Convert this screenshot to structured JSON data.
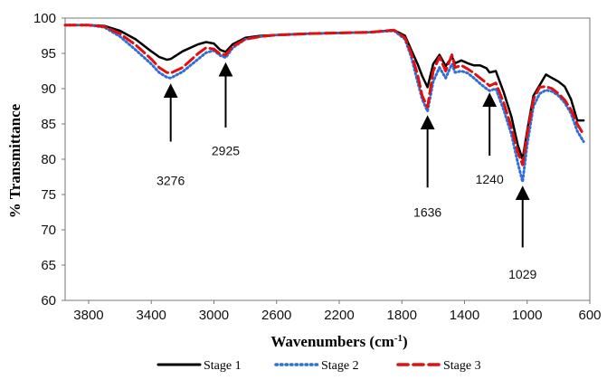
{
  "chart_data": {
    "type": "line",
    "title": "",
    "xlabel": "Wavenumbers (cm",
    "xlabel_sup": "-1",
    "xlabel_close": ")",
    "ylabel": "% Transmittance",
    "xlim": [
      3950,
      600
    ],
    "x_reversed": true,
    "ylim": [
      60,
      100
    ],
    "grid": false,
    "legend_position": "bottom",
    "xticks": [
      3800,
      3400,
      3000,
      2600,
      2200,
      1800,
      1400,
      1000,
      600
    ],
    "yticks": [
      60,
      65,
      70,
      75,
      80,
      85,
      90,
      95,
      100
    ],
    "series": [
      {
        "name": "Stage 1",
        "color": "#000000",
        "style": "solid",
        "x": [
          3950,
          3800,
          3700,
          3600,
          3500,
          3400,
          3350,
          3300,
          3276,
          3200,
          3100,
          3050,
          3000,
          2960,
          2925,
          2880,
          2800,
          2700,
          2600,
          2400,
          2200,
          2000,
          1850,
          1780,
          1740,
          1700,
          1670,
          1636,
          1600,
          1560,
          1520,
          1480,
          1460,
          1420,
          1380,
          1340,
          1300,
          1260,
          1240,
          1200,
          1150,
          1100,
          1060,
          1029,
          1000,
          960,
          920,
          880,
          840,
          800,
          760,
          720,
          680,
          640
        ],
        "y": [
          99,
          99,
          98.9,
          98.2,
          97,
          95.3,
          94.5,
          94.1,
          94.2,
          95.3,
          96.3,
          96.6,
          96.4,
          95.5,
          95.2,
          96.3,
          97.2,
          97.5,
          97.6,
          97.8,
          97.9,
          98,
          98.3,
          97.5,
          95.5,
          93.5,
          91.8,
          90.2,
          93.5,
          94.8,
          93.2,
          94.5,
          93.6,
          94,
          93.6,
          93.3,
          93.3,
          92.9,
          92.3,
          92.5,
          89.5,
          86,
          82,
          80,
          84,
          89,
          90.5,
          92,
          91.5,
          91,
          90.3,
          88.5,
          85.5,
          85.5
        ]
      },
      {
        "name": "Stage 2",
        "color": "#2f6fd6",
        "style": "dotted",
        "x": [
          3950,
          3800,
          3700,
          3600,
          3500,
          3400,
          3350,
          3300,
          3276,
          3200,
          3100,
          3050,
          3000,
          2960,
          2925,
          2880,
          2800,
          2700,
          2600,
          2400,
          2200,
          2000,
          1850,
          1780,
          1740,
          1700,
          1670,
          1636,
          1600,
          1560,
          1520,
          1480,
          1460,
          1420,
          1380,
          1340,
          1300,
          1260,
          1240,
          1200,
          1150,
          1100,
          1060,
          1029,
          1000,
          960,
          920,
          880,
          840,
          800,
          760,
          720,
          680,
          640
        ],
        "y": [
          99,
          99,
          98.7,
          97.4,
          95.5,
          93.5,
          92.3,
          91.6,
          91.5,
          92.4,
          94.2,
          95.1,
          95.4,
          94.7,
          94.4,
          95.8,
          97,
          97.4,
          97.6,
          97.8,
          97.9,
          98,
          98.2,
          97,
          94.5,
          91,
          88.5,
          86.8,
          91,
          93,
          91.5,
          93.5,
          92.3,
          92.5,
          92.2,
          91.5,
          90.7,
          90,
          89.7,
          90,
          87,
          83.5,
          79.5,
          76.8,
          82,
          87.5,
          89.3,
          89.8,
          89.6,
          89,
          88,
          86.5,
          84,
          82.5
        ]
      },
      {
        "name": "Stage 3",
        "color": "#e01010",
        "style": "dashed",
        "x": [
          3950,
          3800,
          3700,
          3600,
          3500,
          3400,
          3350,
          3300,
          3276,
          3200,
          3100,
          3050,
          3000,
          2960,
          2925,
          2880,
          2800,
          2700,
          2600,
          2400,
          2200,
          2000,
          1850,
          1780,
          1740,
          1700,
          1670,
          1636,
          1600,
          1560,
          1520,
          1480,
          1460,
          1420,
          1380,
          1340,
          1300,
          1260,
          1240,
          1200,
          1150,
          1100,
          1060,
          1029,
          1000,
          960,
          920,
          880,
          840,
          800,
          760,
          720,
          680,
          640
        ],
        "y": [
          99,
          99,
          98.8,
          97.8,
          96.2,
          94.2,
          93,
          92.3,
          92.2,
          93,
          95,
          95.8,
          95.6,
          94.9,
          94.8,
          96,
          97,
          97.4,
          97.6,
          97.8,
          97.9,
          98,
          98.3,
          97.2,
          95,
          92,
          89,
          87.4,
          92.5,
          94.5,
          92.5,
          94.8,
          93,
          93.3,
          92.8,
          92.2,
          91.5,
          90.8,
          90.4,
          90.8,
          88,
          84.5,
          81,
          79.2,
          83.5,
          88.5,
          90.2,
          90.3,
          90,
          89.3,
          88.4,
          87,
          85,
          83.5
        ]
      }
    ],
    "annotations": [
      {
        "label": "3276",
        "x": 3276,
        "y_tip": 90.5,
        "y_tail": 82.5,
        "label_y": 77,
        "arrow": "up"
      },
      {
        "label": "2925",
        "x": 2925,
        "y_tip": 93.5,
        "y_tail": 84.5,
        "label_y": 81.2,
        "arrow": "up"
      },
      {
        "label": "1636",
        "x": 1636,
        "y_tip": 86,
        "y_tail": 76,
        "label_y": 72.5,
        "arrow": "up"
      },
      {
        "label": "1240",
        "x": 1240,
        "y_tip": 89.2,
        "y_tail": 80.5,
        "label_y": 77.2,
        "arrow": "up"
      },
      {
        "label": "1029",
        "x": 1029,
        "y_tip": 76,
        "y_tail": 67.5,
        "label_y": 63.7,
        "arrow": "up"
      }
    ]
  }
}
